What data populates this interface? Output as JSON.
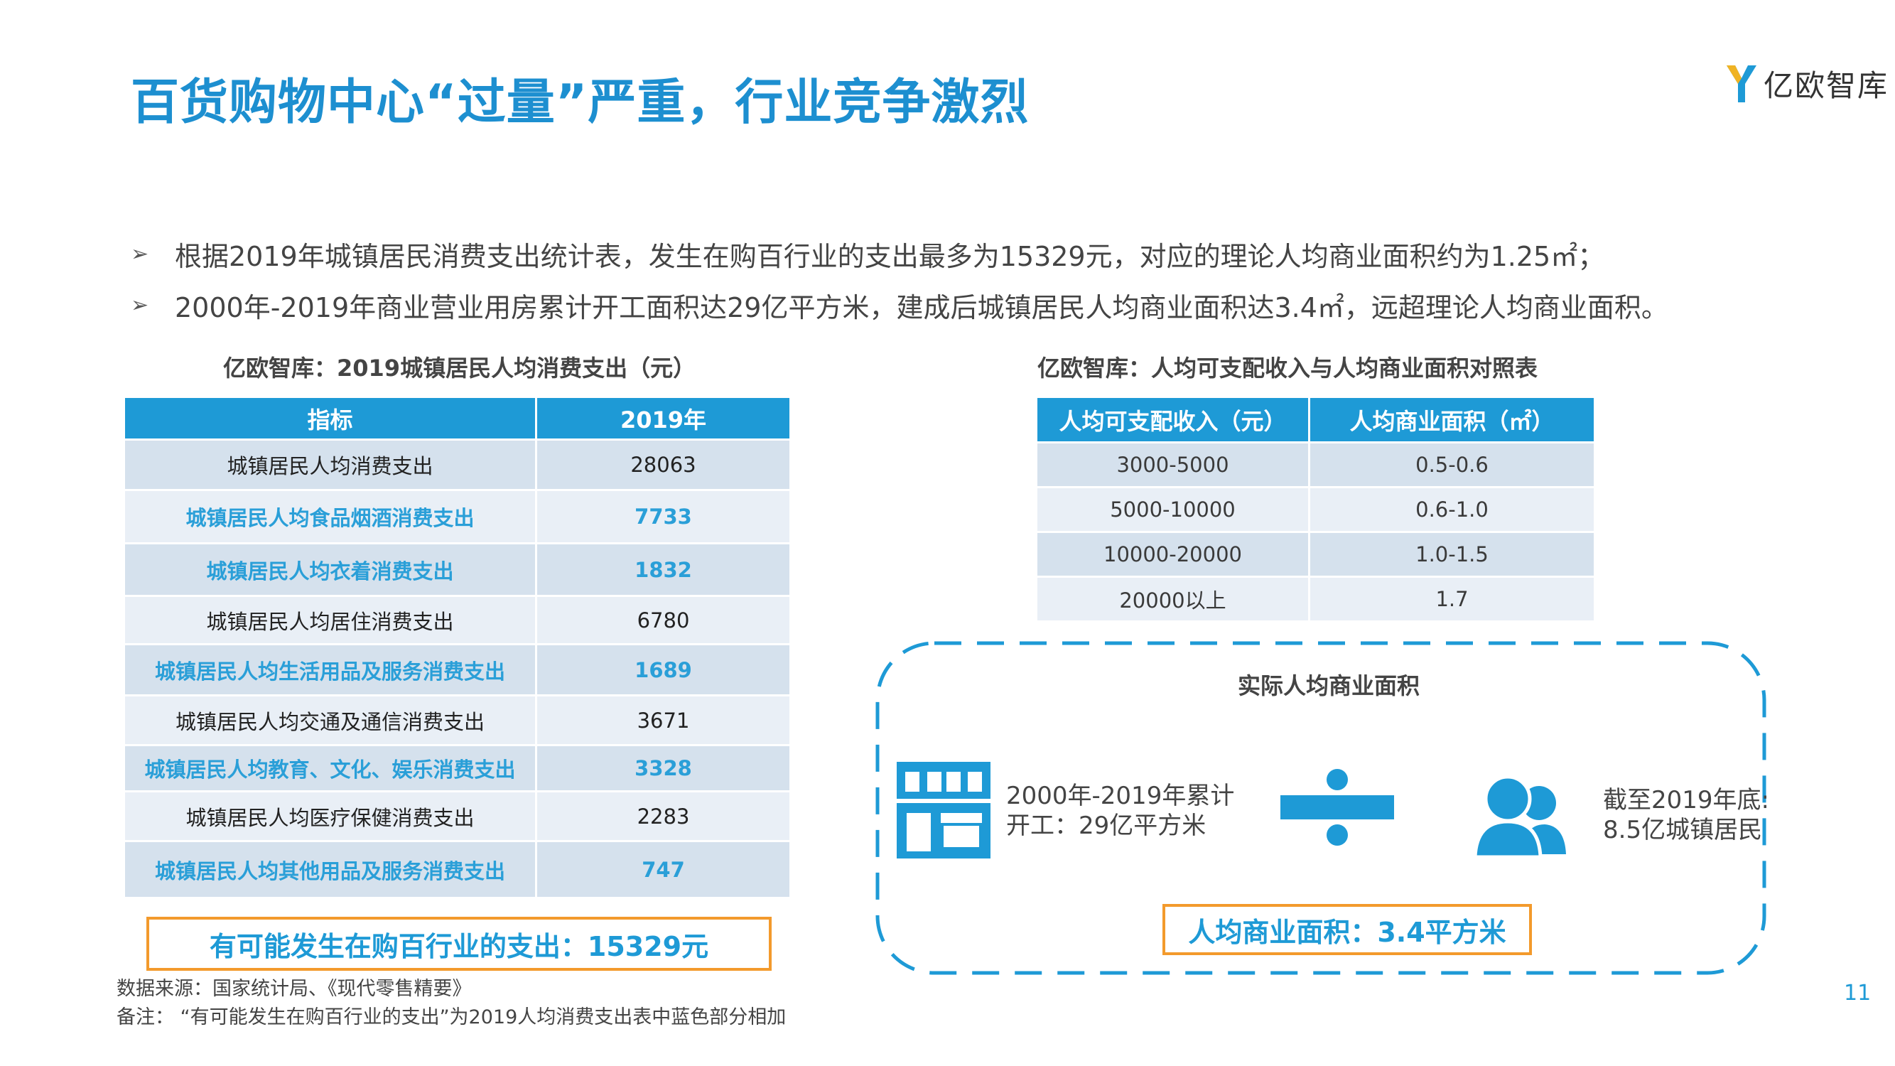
{
  "title": "百货购物中心“过量”严重，行业竞争激烈",
  "logo": {
    "icon": "yiou-logo-icon",
    "text": "亿欧智库"
  },
  "bullets": [
    "根据2019年城镇居民消费支出统计表，发生在购百行业的支出最多为15329元，对应的理论人均商业面积约为1.25㎡；",
    "2000年-2019年商业营业用房累计开工面积达29亿平方米，建成后城镇居民人均商业面积达3.4㎡，远超理论人均商业面积。"
  ],
  "table1": {
    "title": "亿欧智库：2019城镇居民人均消费支出（元）",
    "headers": [
      "指标",
      "2019年"
    ],
    "rows": [
      {
        "label": "城镇居民人均消费支出",
        "value": "28063",
        "highlight": false
      },
      {
        "label": "城镇居民人均食品烟酒消费支出",
        "value": "7733",
        "highlight": true
      },
      {
        "label": "城镇居民人均衣着消费支出",
        "value": "1832",
        "highlight": true
      },
      {
        "label": "城镇居民人均居住消费支出",
        "value": "6780",
        "highlight": false
      },
      {
        "label": "城镇居民人均生活用品及服务消费支出",
        "value": "1689",
        "highlight": true
      },
      {
        "label": "城镇居民人均交通及通信消费支出",
        "value": "3671",
        "highlight": false
      },
      {
        "label": "城镇居民人均教育、文化、娱乐消费支出",
        "value": "3328",
        "highlight": true
      },
      {
        "label": "城镇居民人均医疗保健消费支出",
        "value": "2283",
        "highlight": false
      },
      {
        "label": "城镇居民人均其他用品及服务消费支出",
        "value": "747",
        "highlight": true
      }
    ],
    "summary": "有可能发生在购百行业的支出：15329元"
  },
  "table2": {
    "title": "亿欧智库：人均可支配收入与人均商业面积对照表",
    "headers": [
      "人均可支配收入（元）",
      "人均商业面积（㎡）"
    ],
    "rows": [
      [
        "3000-5000",
        "0.5-0.6"
      ],
      [
        "5000-10000",
        "0.6-1.0"
      ],
      [
        "10000-20000",
        "1.0-1.5"
      ],
      [
        "20000以上",
        "1.7"
      ]
    ]
  },
  "formula": {
    "title": "实际人均商业面积",
    "left_icon": "building-icon",
    "left_line1": "2000年-2019年累计",
    "left_line2": "开工：29亿平方米",
    "operator_icon": "divide-icon",
    "right_icon": "people-icon",
    "right_line1": "截至2019年底:",
    "right_line2": "8.5亿城镇居民",
    "result": "人均商业面积：3.4平方米"
  },
  "source": "数据来源：国家统计局、《现代零售精要》",
  "note": "备注：  “有可能发生在购百行业的支出”为2019人均消费支出表中蓝色部分相加",
  "page_number": "11",
  "colors": {
    "accent": "#1e9ad6",
    "orange": "#f39a2c",
    "row_dark": "#d5e1ed",
    "row_light": "#e9eff6"
  }
}
